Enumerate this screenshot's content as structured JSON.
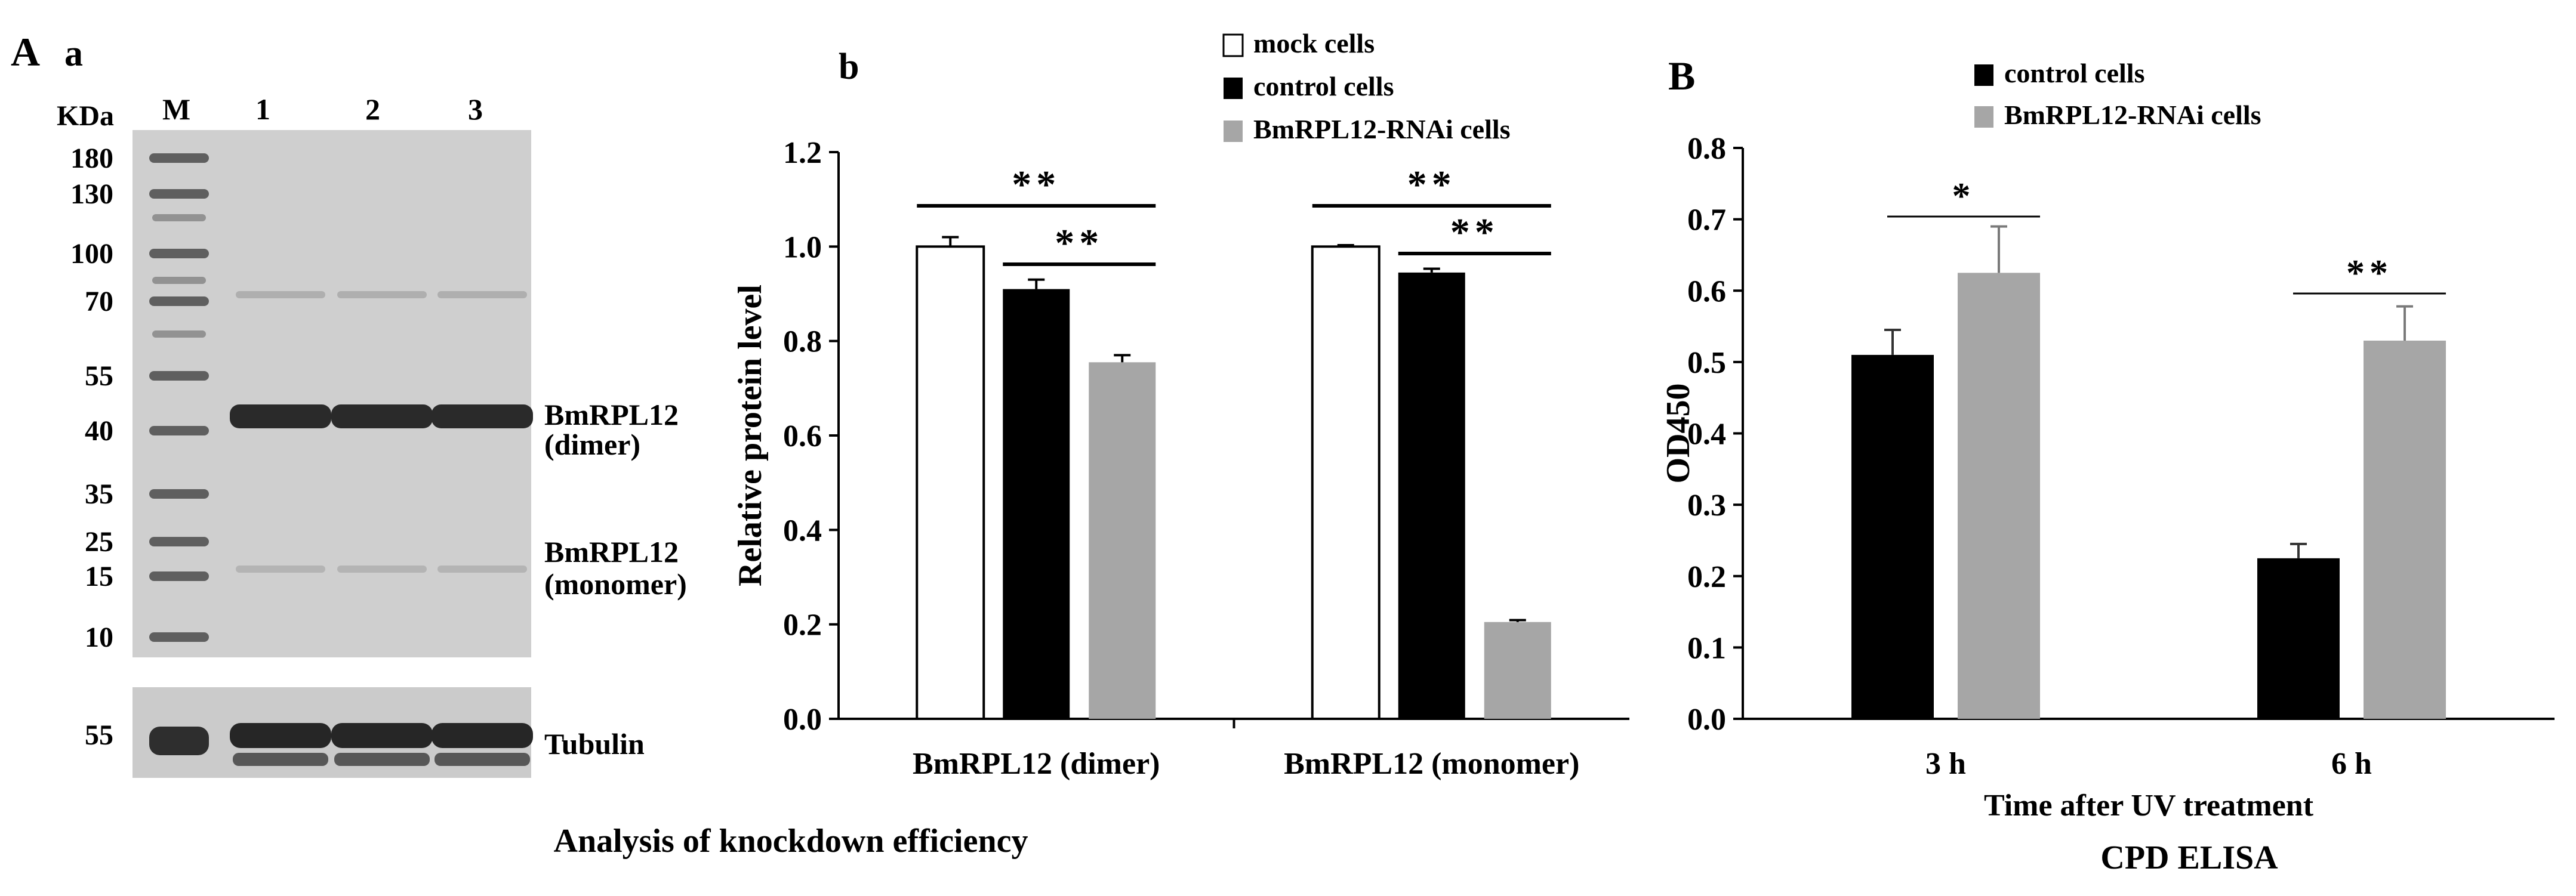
{
  "panels": {
    "A": "A",
    "a": "a",
    "b": "b",
    "B": "B"
  },
  "gel": {
    "kda_label": "KDa",
    "marker_lane_label": "M",
    "sample_lane_labels": [
      "1",
      "2",
      "3"
    ],
    "marker_sizes": [
      "180",
      "130",
      "100",
      "70",
      "55",
      "40",
      "35",
      "25",
      "15",
      "10"
    ],
    "tubulin_marker_size": "55",
    "band_labels": {
      "dimer_name": "BmRPL12",
      "dimer_form": "(dimer)",
      "monomer_name": "BmRPL12",
      "monomer_form": "(monomer)",
      "tubulin": "Tubulin"
    },
    "gel_color": "#cfcfcf",
    "band_color": "#2a2a2a"
  },
  "footer": {
    "panel_A_caption": "Analysis of knockdown efficiency",
    "panel_B_caption": "CPD ELISA"
  },
  "colors": {
    "mock": "#ffffff",
    "control": "#000000",
    "rnai": "#a6a6a6"
  },
  "chart_data": [
    {
      "type": "bar",
      "panel": "b",
      "ylabel": "Relative protein level",
      "xlabel": "",
      "ylim": [
        0,
        1.2
      ],
      "yticks": [
        0,
        0.2,
        0.4,
        0.6,
        0.8,
        1.0,
        1.2
      ],
      "ytick_labels": [
        "0.0",
        "0.2",
        "0.4",
        "0.6",
        "0.8",
        "1.0",
        "1.2"
      ],
      "categories": [
        "BmRPL12 (dimer)",
        "BmRPL12 (monomer)"
      ],
      "legend_position": "top",
      "series": [
        {
          "name": "mock cells",
          "color_key": "mock",
          "values": [
            1.0,
            1.0
          ],
          "errors": [
            0.02,
            0.003
          ]
        },
        {
          "name": "control cells",
          "color_key": "control",
          "values": [
            0.91,
            0.945
          ],
          "errors": [
            0.02,
            0.008
          ]
        },
        {
          "name": "BmRPL12-RNAi cells",
          "color_key": "rnai",
          "values": [
            0.755,
            0.205
          ],
          "errors": [
            0.015,
            0.004
          ]
        }
      ],
      "significance": [
        {
          "category": 0,
          "from_series": 0,
          "to_series": 2,
          "label": "**"
        },
        {
          "category": 0,
          "from_series": 1,
          "to_series": 2,
          "label": "**"
        },
        {
          "category": 1,
          "from_series": 0,
          "to_series": 2,
          "label": "**"
        },
        {
          "category": 1,
          "from_series": 1,
          "to_series": 2,
          "label": "**"
        }
      ]
    },
    {
      "type": "bar",
      "panel": "B",
      "ylabel": "OD450",
      "xlabel": "Time after UV treatment",
      "ylim": [
        0,
        0.8
      ],
      "yticks": [
        0,
        0.1,
        0.2,
        0.3,
        0.4,
        0.5,
        0.6,
        0.7,
        0.8
      ],
      "ytick_labels": [
        "0.0",
        "0.1",
        "0.2",
        "0.3",
        "0.4",
        "0.5",
        "0.6",
        "0.7",
        "0.8"
      ],
      "categories": [
        "3 h",
        "6 h"
      ],
      "legend_position": "top",
      "series": [
        {
          "name": "control cells",
          "color_key": "control",
          "values": [
            0.51,
            0.225
          ],
          "errors": [
            0.035,
            0.02
          ]
        },
        {
          "name": "BmRPL12-RNAi cells",
          "color_key": "rnai",
          "values": [
            0.625,
            0.53
          ],
          "errors": [
            0.065,
            0.048
          ]
        }
      ],
      "significance": [
        {
          "category": 0,
          "from_series": 0,
          "to_series": 1,
          "label": "*"
        },
        {
          "category": 1,
          "from_series": 0,
          "to_series": 1,
          "label": "**"
        }
      ]
    }
  ]
}
